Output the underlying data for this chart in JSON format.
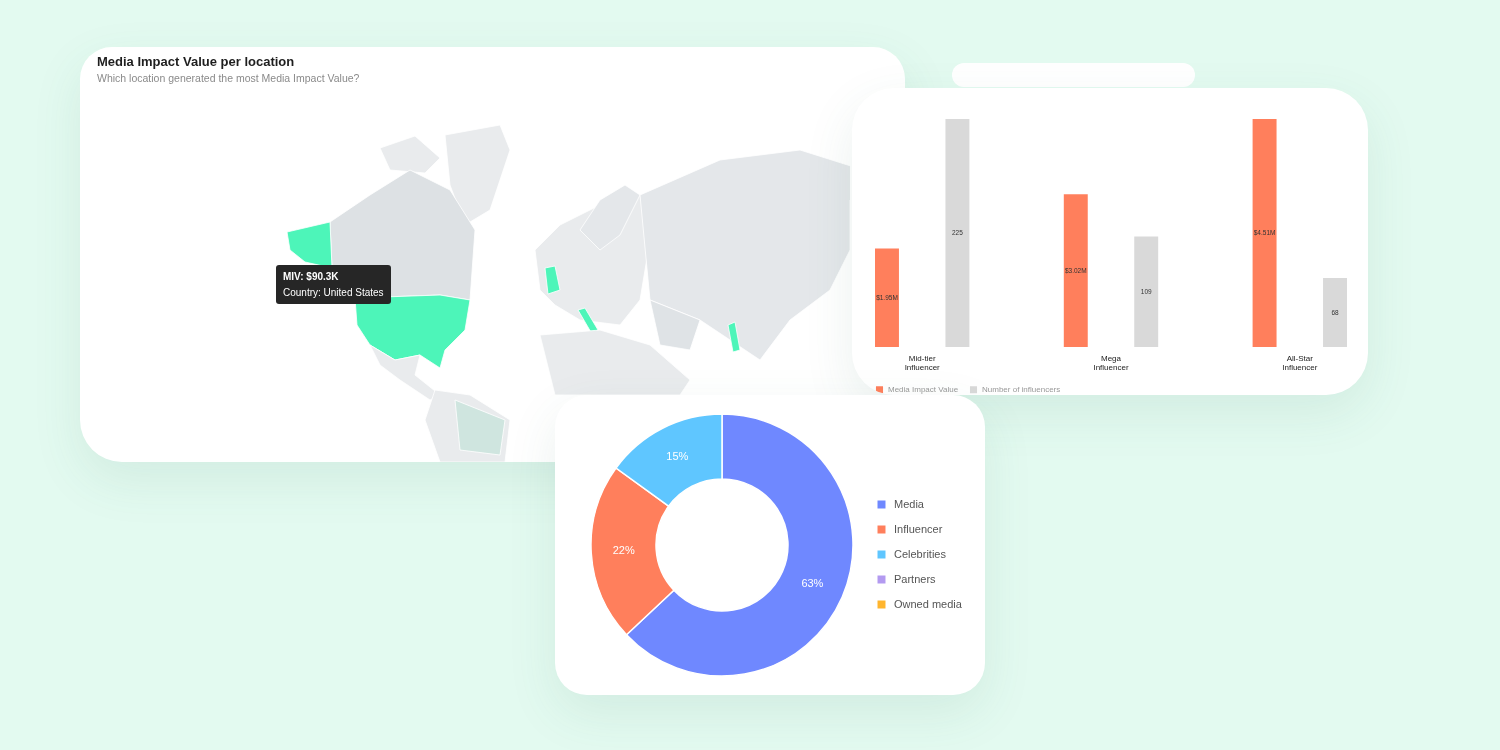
{
  "chart_data": [
    {
      "type": "other",
      "title": "Media Impact Value per location",
      "subtitle": "Which location generated the most Media Impact Value?",
      "annotations": [
        "MIV: $90.3K",
        "Country: United States"
      ]
    },
    {
      "type": "bar",
      "categories": [
        "Mid-tier Influencer",
        "Mega Influencer",
        "All-Star Influencer"
      ],
      "series": [
        {
          "name": "Media Impact Value",
          "color": "#ff7f5c",
          "values": [
            1.95,
            3.02,
            4.51
          ],
          "value_labels": [
            "$1.95M",
            "$3.02M",
            "$4.51M"
          ]
        },
        {
          "name": "Number of influencers",
          "color": "#d9d9d9",
          "values": [
            225,
            109,
            68
          ],
          "value_labels": [
            "225",
            "109",
            "68"
          ],
          "axis": "y2"
        }
      ],
      "legend": "bottom",
      "tick_labels": "x"
    },
    {
      "type": "donut",
      "categories": [
        "Media",
        "Influencer",
        "Celebrities",
        "Partners",
        "Owned media"
      ],
      "values": [
        63,
        22,
        15,
        0,
        0
      ],
      "colors": [
        "#6f88ff",
        "#ff7f5c",
        "#5fc6ff",
        "#b39af0",
        "#ffb52e"
      ],
      "value_labels": [
        "63%",
        "22%",
        "15%",
        null,
        null
      ],
      "legend": "right"
    }
  ]
}
